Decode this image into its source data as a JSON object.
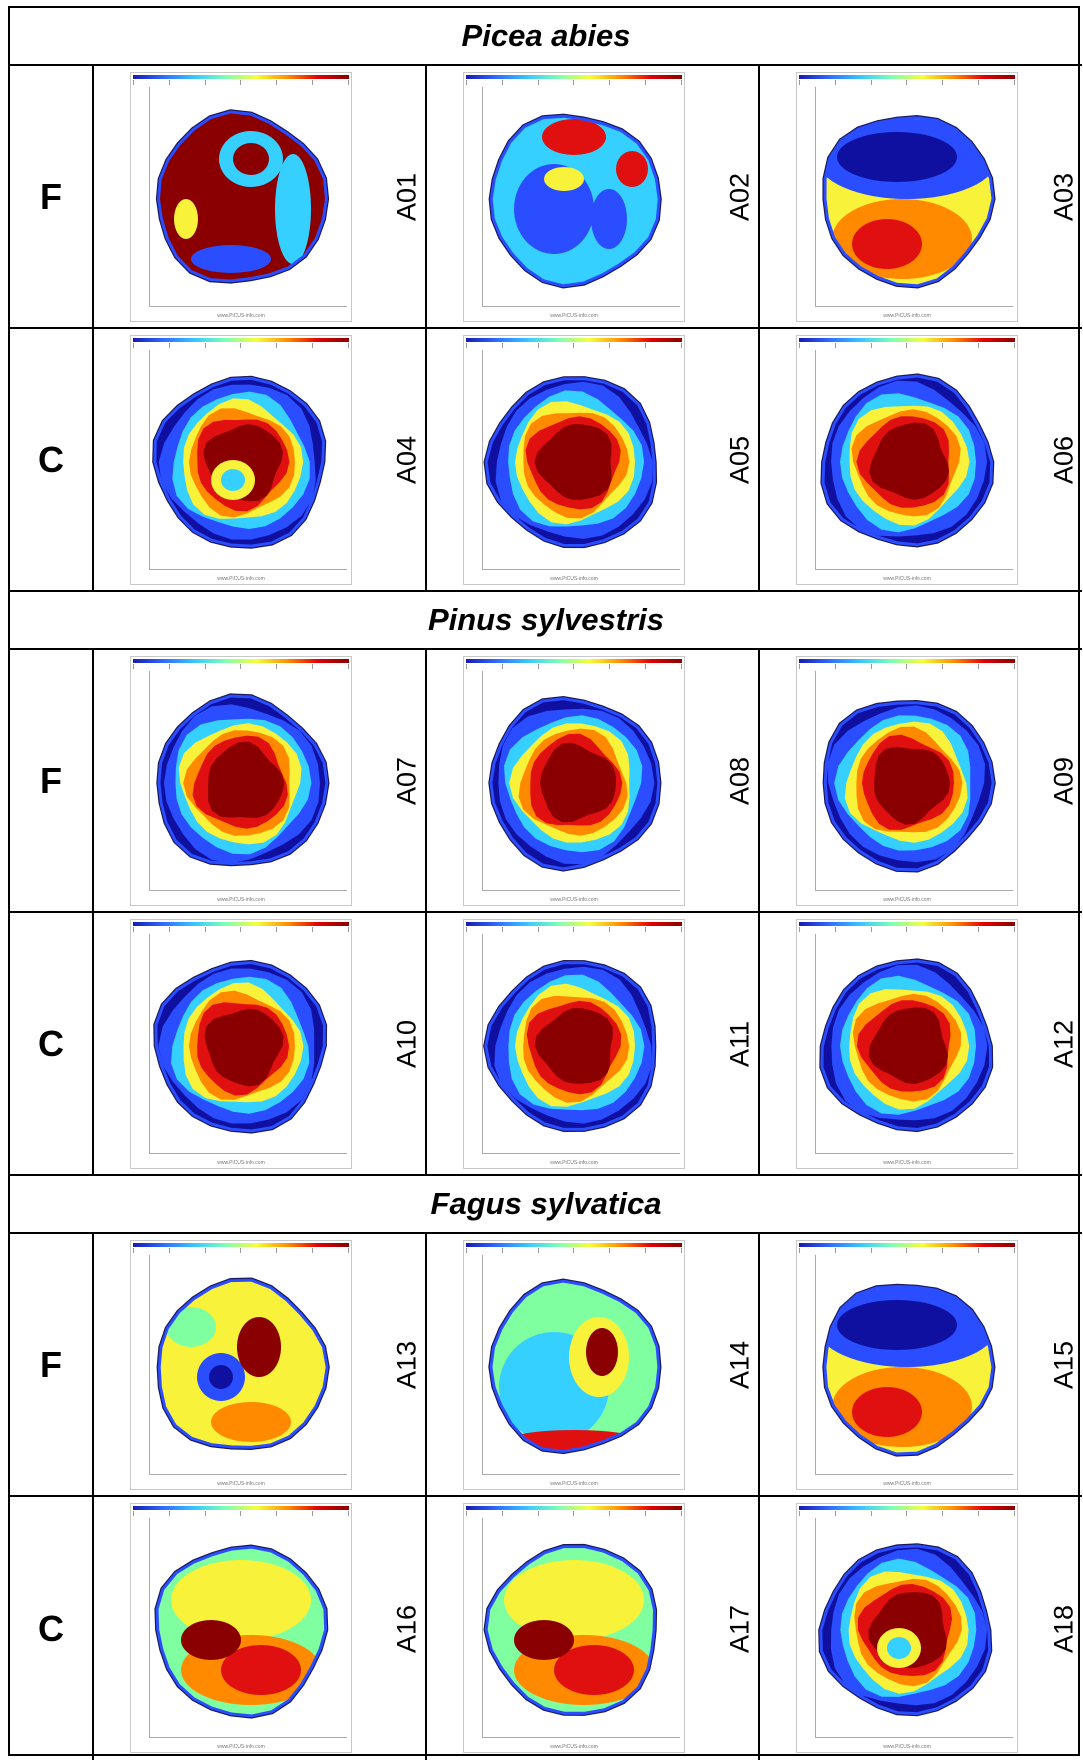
{
  "sections": [
    {
      "species": "Picea abies",
      "rows": [
        {
          "label": "F",
          "samples": [
            {
              "id": "A01",
              "pattern": "mixed"
            },
            {
              "id": "A02",
              "pattern": "blue-center"
            },
            {
              "id": "A03",
              "pattern": "blue-top"
            }
          ]
        },
        {
          "label": "C",
          "samples": [
            {
              "id": "A04",
              "pattern": "red-core-hole"
            },
            {
              "id": "A05",
              "pattern": "red-core"
            },
            {
              "id": "A06",
              "pattern": "red-core"
            }
          ]
        }
      ]
    },
    {
      "species": "Pinus sylvestris",
      "rows": [
        {
          "label": "F",
          "samples": [
            {
              "id": "A07",
              "pattern": "red-core"
            },
            {
              "id": "A08",
              "pattern": "red-core"
            },
            {
              "id": "A09",
              "pattern": "red-core"
            }
          ]
        },
        {
          "label": "C",
          "samples": [
            {
              "id": "A10",
              "pattern": "red-core"
            },
            {
              "id": "A11",
              "pattern": "red-core"
            },
            {
              "id": "A12",
              "pattern": "red-core"
            }
          ]
        }
      ]
    },
    {
      "species": "Fagus sylvatica",
      "rows": [
        {
          "label": "F",
          "samples": [
            {
              "id": "A13",
              "pattern": "mixed-yellow"
            },
            {
              "id": "A14",
              "pattern": "cyan-red-spot"
            },
            {
              "id": "A15",
              "pattern": "blue-top"
            }
          ]
        },
        {
          "label": "C",
          "samples": [
            {
              "id": "A16",
              "pattern": "yellow-red-bottom"
            },
            {
              "id": "A17",
              "pattern": "yellow-red-bottom"
            },
            {
              "id": "A18",
              "pattern": "red-core-hole"
            }
          ]
        }
      ]
    }
  ],
  "website_label": "www.PiCUS-info.com",
  "colors": {
    "dark_blue": "#1010a0",
    "blue": "#2a4dff",
    "cyan": "#35d0ff",
    "green": "#80ffa0",
    "yellow": "#f8f23a",
    "orange": "#ff8a00",
    "red": "#e01010",
    "dark_red": "#8a0000"
  }
}
